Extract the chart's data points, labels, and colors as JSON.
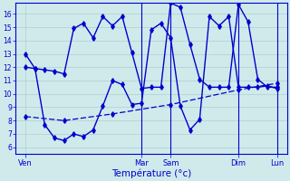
{
  "background_color": "#d0eaec",
  "grid_color": "#b0cccc",
  "line_color": "#0000cc",
  "xlabel": "Température (°c)",
  "ylim": [
    5.5,
    16.8
  ],
  "yticks": [
    6,
    7,
    8,
    9,
    10,
    11,
    12,
    13,
    14,
    15,
    16
  ],
  "xlim": [
    0,
    168
  ],
  "x_day_labels": [
    "Ven",
    "Mar",
    "Sam",
    "Dim",
    "Lun"
  ],
  "x_day_positions": [
    6,
    78,
    96,
    138,
    162
  ],
  "x_vlines": [
    78,
    96,
    138,
    162
  ],
  "line_wavy1_x": [
    6,
    12,
    18,
    24,
    30,
    36,
    42,
    48,
    54,
    60,
    66,
    72,
    78,
    84,
    90,
    96,
    102,
    108,
    114,
    120,
    126,
    132,
    138,
    144,
    150,
    156,
    162
  ],
  "line_wavy1_y": [
    13.0,
    11.9,
    7.7,
    6.7,
    6.5,
    7.0,
    6.8,
    7.3,
    9.1,
    11.0,
    10.7,
    9.2,
    9.3,
    14.8,
    15.3,
    14.2,
    9.1,
    7.3,
    8.1,
    15.8,
    15.1,
    15.8,
    10.5,
    10.5,
    10.5,
    10.6,
    10.4
  ],
  "line_wavy2_x": [
    6,
    12,
    18,
    24,
    30,
    36,
    42,
    48,
    54,
    60,
    66,
    72,
    78,
    84,
    90,
    96,
    102,
    108,
    114,
    120,
    126,
    132,
    138,
    144,
    150,
    156,
    162
  ],
  "line_wavy2_y": [
    12.0,
    11.9,
    11.8,
    11.7,
    11.5,
    14.9,
    15.3,
    14.2,
    15.8,
    15.1,
    15.8,
    13.1,
    10.4,
    10.5,
    10.5,
    16.8,
    16.5,
    13.7,
    11.1,
    10.5,
    10.5,
    10.5,
    16.7,
    15.4,
    11.1,
    10.5,
    10.5
  ],
  "line_diag_x": [
    6,
    30,
    60,
    96,
    138,
    162
  ],
  "line_diag_y": [
    8.3,
    8.0,
    8.5,
    9.2,
    10.3,
    10.8
  ]
}
